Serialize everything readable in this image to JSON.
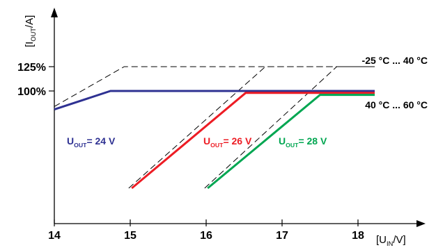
{
  "chart_data": {
    "type": "line",
    "ylabel": {
      "main": "[I",
      "sub": "OUT",
      "tail": "/A]"
    },
    "xlabel": {
      "main": "[U",
      "sub": "IN",
      "tail": "/V]"
    },
    "xlim": [
      14,
      19.0
    ],
    "ylim": [
      0,
      145
    ],
    "x_ticks": [
      {
        "value": 14,
        "label": "14"
      },
      {
        "value": 15,
        "label": "15"
      },
      {
        "value": 16,
        "label": "16"
      },
      {
        "value": 17,
        "label": "17"
      },
      {
        "value": 18,
        "label": "18"
      }
    ],
    "y_ticks": [
      {
        "value": 100,
        "label": "100%"
      },
      {
        "value": 125,
        "label": "125%"
      }
    ],
    "series": [
      {
        "name": "U_OUT = 24 V",
        "label": {
          "main": "U",
          "sub": "OUT",
          "tail": "= 24 V"
        },
        "color": "#2e3192",
        "points": [
          [
            14.0,
            81
          ],
          [
            14.74,
            100
          ],
          [
            18.22,
            100
          ]
        ],
        "dashed_points": [
          [
            14.0,
            84
          ],
          [
            14.92,
            125
          ],
          [
            18.22,
            125
          ]
        ]
      },
      {
        "name": "U_OUT = 26 V",
        "label": {
          "main": "U",
          "sub": "OUT",
          "tail": "= 26 V"
        },
        "color": "#ed1c24",
        "points": [
          [
            15.02,
            0
          ],
          [
            16.52,
            98
          ],
          [
            18.22,
            98
          ]
        ],
        "dashed_points": [
          [
            14.98,
            0
          ],
          [
            16.78,
            125
          ],
          [
            18.22,
            125
          ]
        ]
      },
      {
        "name": "U_OUT = 28 V",
        "label": {
          "main": "U",
          "sub": "OUT",
          "tail": "= 28 V"
        },
        "color": "#00a651",
        "points": [
          [
            16.02,
            0
          ],
          [
            17.5,
            96
          ],
          [
            18.22,
            96
          ]
        ],
        "dashed_points": [
          [
            15.98,
            0
          ],
          [
            17.72,
            125
          ],
          [
            18.22,
            125
          ]
        ]
      }
    ],
    "annotations": [
      {
        "text": "-25 °C ... 40 °C",
        "x": 18.22,
        "y": 125
      },
      {
        "text": "40 °C ... 60 °C",
        "x": 18.22,
        "y": 96
      }
    ],
    "colors": {
      "axis": "#000000",
      "dashed": "#000000"
    },
    "grid": false,
    "legend": "inline labels"
  }
}
